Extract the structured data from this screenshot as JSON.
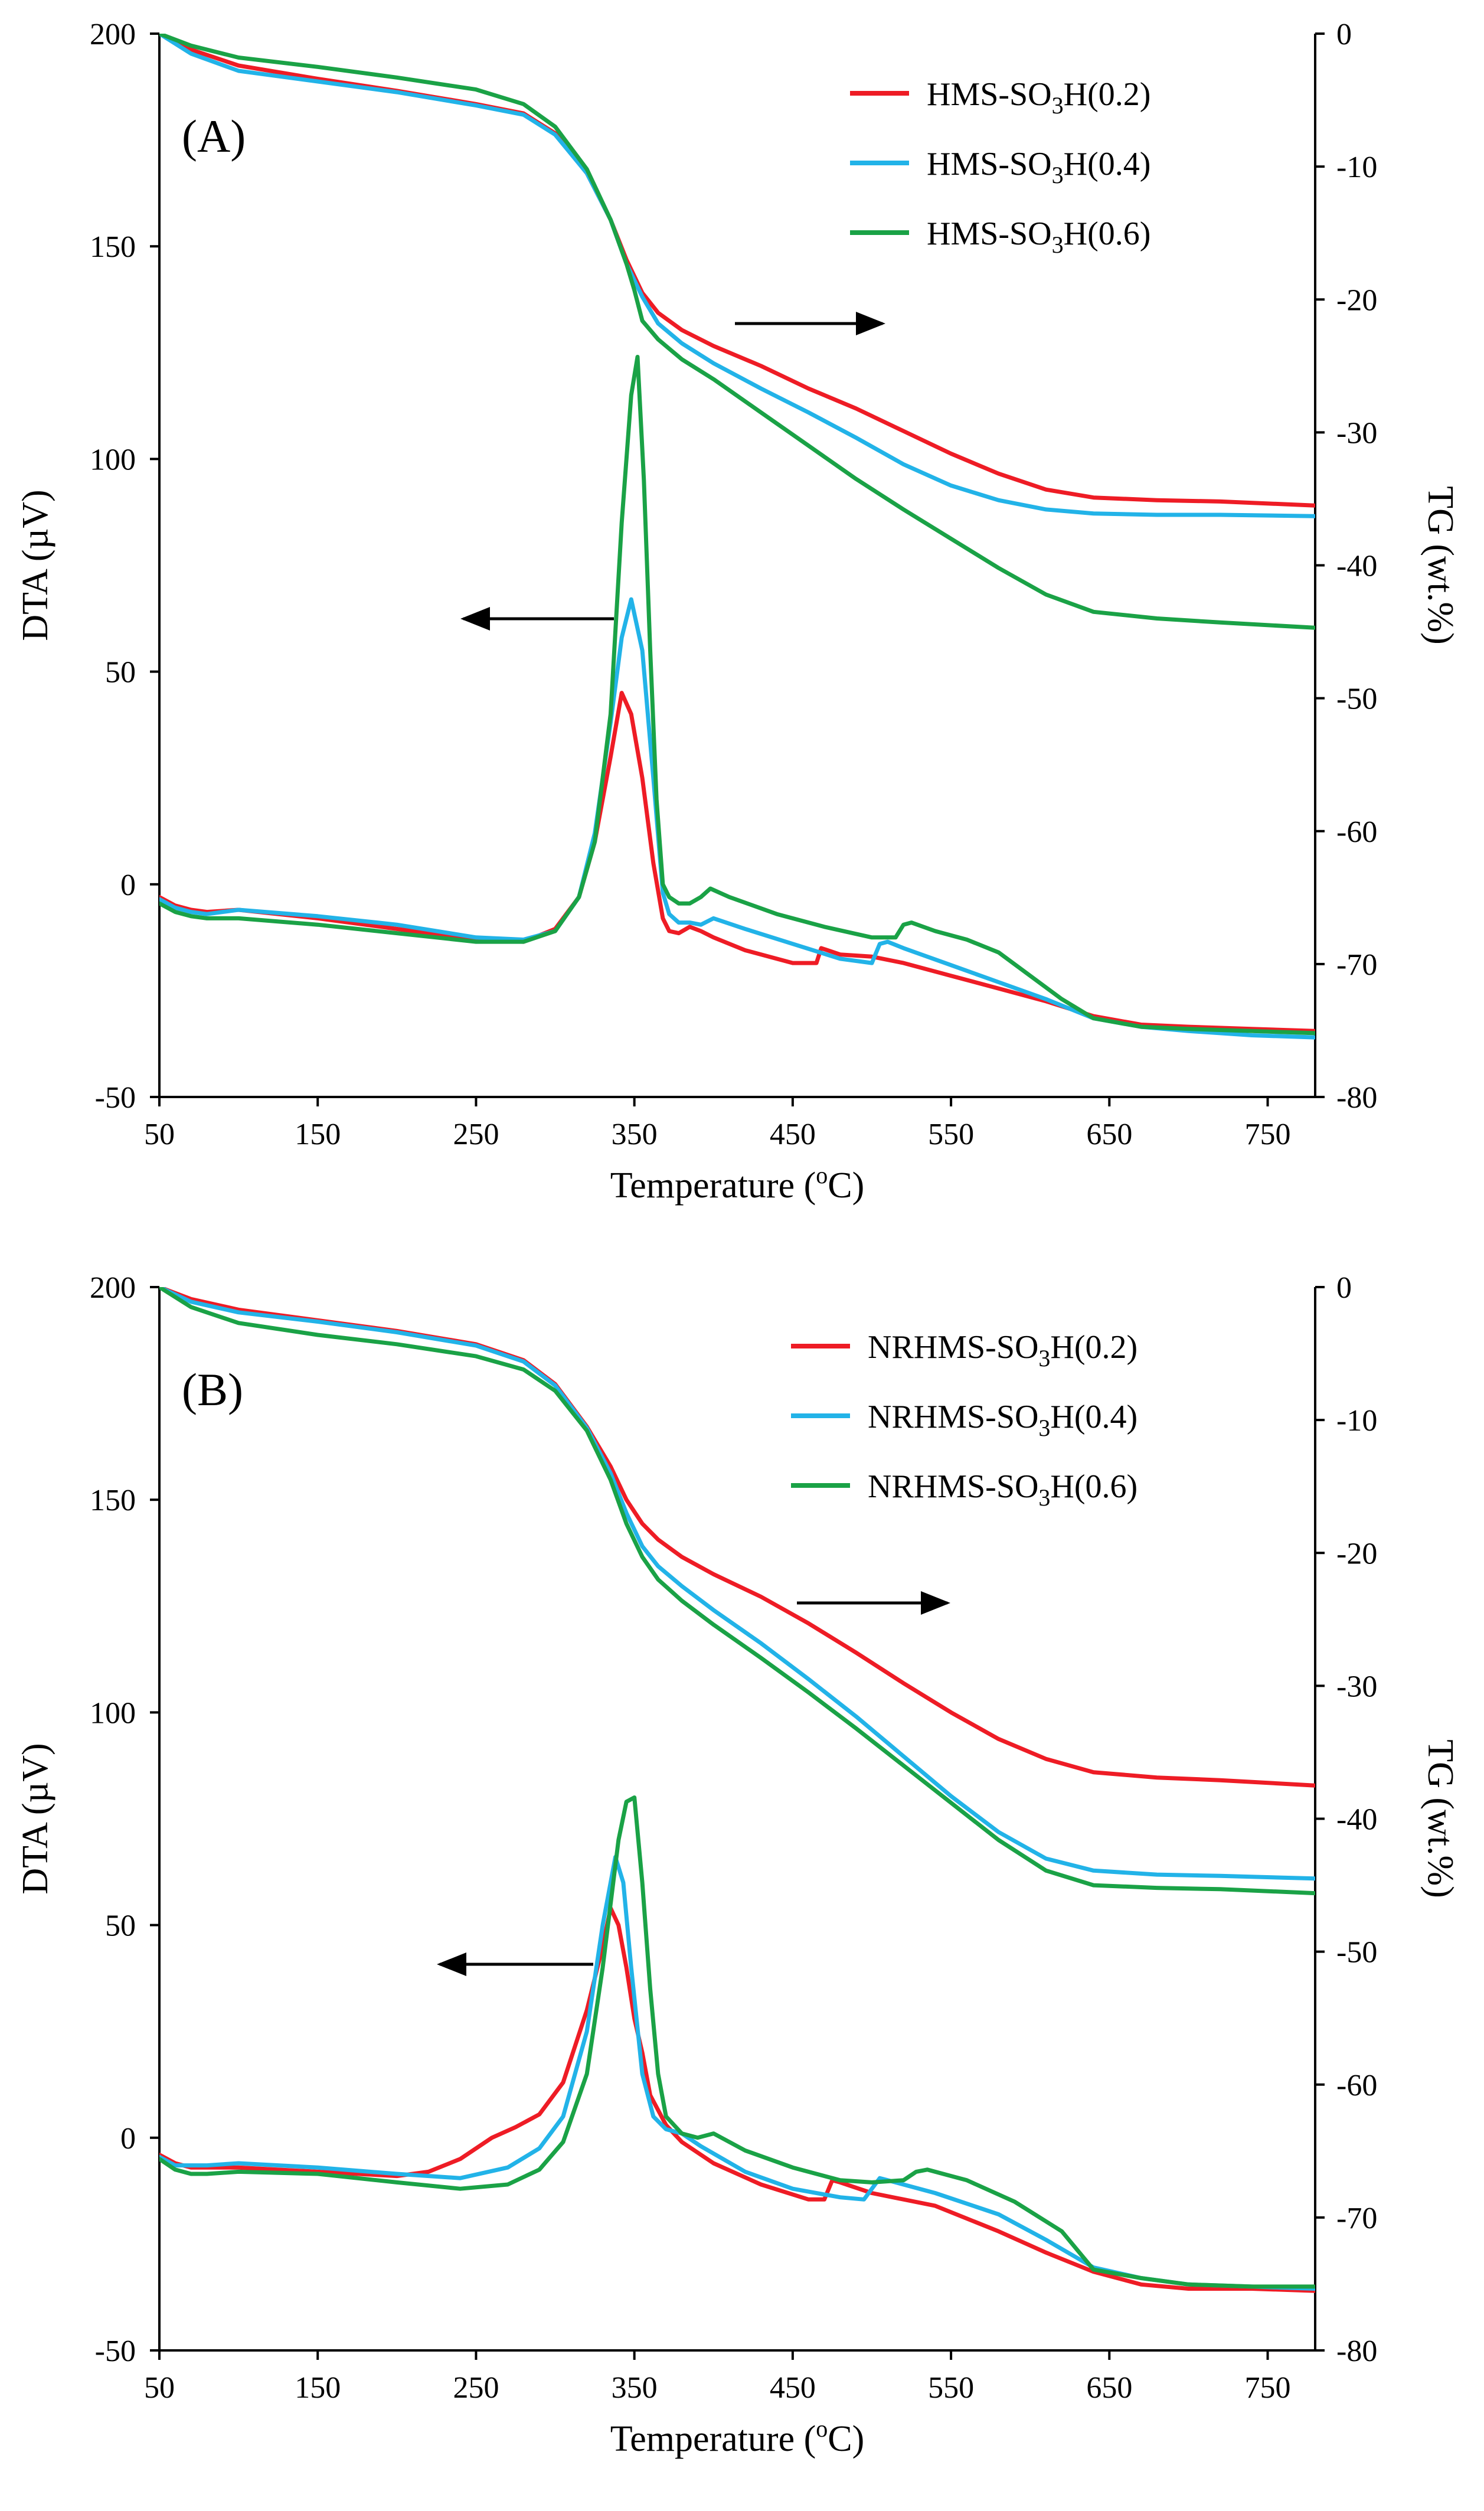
{
  "chart_data": [
    {
      "type": "line",
      "panel_label": "(A)",
      "xlabel": "Temperature (oC)",
      "xlabel_base": "Temperature (",
      "xlabel_sup": "o",
      "xlabel_end": "C)",
      "ylabel_left": "DTA (µV)",
      "ylabel_right": "TG (wt.%)",
      "xlim": [
        50,
        780
      ],
      "ylim_left": [
        -50,
        200
      ],
      "ylim_right": [
        -80,
        0
      ],
      "xticks": [
        50,
        150,
        250,
        350,
        450,
        550,
        650,
        750
      ],
      "yticks_left": [
        -50,
        0,
        50,
        100,
        150,
        200
      ],
      "yticks_right": [
        -80,
        -70,
        -60,
        -50,
        -40,
        -30,
        -20,
        -10,
        0
      ],
      "legend_position": "top-right",
      "arrows": [
        {
          "direction": "right",
          "axis": "TG",
          "note": "arrow points to TG axis"
        },
        {
          "direction": "left",
          "axis": "DTA",
          "note": "arrow points to DTA axis"
        }
      ],
      "series": [
        {
          "name": "HMS-SO3H(0.2)",
          "name_pre": "HMS-SO",
          "name_sub": "3",
          "name_post": "H(0.2)",
          "color": "#ee1c25",
          "tg_x": [
            50,
            70,
            100,
            150,
            200,
            250,
            280,
            300,
            320,
            335,
            345,
            355,
            365,
            380,
            400,
            430,
            460,
            490,
            520,
            550,
            580,
            610,
            640,
            680,
            720,
            780
          ],
          "tg_y": [
            0,
            -1.2,
            -2.4,
            -3.4,
            -4.3,
            -5.3,
            -6.0,
            -7.5,
            -10.5,
            -14,
            -17,
            -19.5,
            -21,
            -22.3,
            -23.5,
            -25,
            -26.7,
            -28.2,
            -29.9,
            -31.6,
            -33.1,
            -34.3,
            -34.9,
            -35.1,
            -35.2,
            -35.5
          ],
          "dta_x": [
            50,
            60,
            70,
            80,
            100,
            150,
            200,
            250,
            280,
            300,
            315,
            325,
            335,
            342,
            348,
            355,
            362,
            368,
            372,
            378,
            385,
            392,
            400,
            420,
            450,
            465,
            468,
            472,
            480,
            500,
            520,
            550,
            580,
            610,
            640,
            670,
            700,
            740,
            780
          ],
          "dta_y": [
            -3,
            -5,
            -6,
            -6.5,
            -6,
            -8,
            -10.5,
            -13,
            -13.5,
            -10.5,
            -3,
            10,
            30,
            45,
            40,
            25,
            5,
            -8,
            -11,
            -11.5,
            -10,
            -11,
            -12.5,
            -15.5,
            -18.5,
            -18.5,
            -15,
            -15.5,
            -16.5,
            -17,
            -18.5,
            -21.5,
            -24.5,
            -27.5,
            -31,
            -33,
            -33.5,
            -34,
            -34.5
          ]
        },
        {
          "name": "HMS-SO3H(0.4)",
          "name_pre": "HMS-SO",
          "name_sub": "3",
          "name_post": "H(0.4)",
          "color": "#22b3e8",
          "tg_x": [
            50,
            70,
            100,
            150,
            200,
            250,
            280,
            300,
            320,
            335,
            345,
            355,
            365,
            380,
            400,
            430,
            460,
            490,
            520,
            550,
            580,
            610,
            640,
            680,
            720,
            780
          ],
          "tg_y": [
            0,
            -1.5,
            -2.8,
            -3.6,
            -4.4,
            -5.4,
            -6.1,
            -7.6,
            -10.5,
            -14,
            -17.3,
            -19.8,
            -21.8,
            -23.3,
            -24.8,
            -26.7,
            -28.5,
            -30.4,
            -32.4,
            -34.0,
            -35.1,
            -35.8,
            -36.1,
            -36.2,
            -36.2,
            -36.3
          ],
          "dta_x": [
            50,
            60,
            70,
            80,
            100,
            150,
            200,
            250,
            280,
            300,
            315,
            325,
            335,
            342,
            348,
            355,
            362,
            368,
            372,
            378,
            385,
            392,
            400,
            420,
            450,
            480,
            500,
            505,
            510,
            520,
            550,
            580,
            610,
            640,
            670,
            700,
            740,
            780
          ],
          "dta_y": [
            -3.5,
            -5.5,
            -6.5,
            -7,
            -6,
            -7.5,
            -9.5,
            -12.5,
            -13,
            -11,
            -3,
            12,
            38,
            58,
            67,
            55,
            25,
            -2,
            -7,
            -9,
            -9,
            -9.5,
            -8,
            -10.5,
            -14,
            -17.5,
            -18.5,
            -14,
            -13.5,
            -15,
            -19,
            -23,
            -27,
            -31.5,
            -33.5,
            -34.5,
            -35.5,
            -36
          ]
        },
        {
          "name": "HMS-SO3H(0.6)",
          "name_pre": "HMS-SO",
          "name_sub": "3",
          "name_post": "H(0.6)",
          "color": "#1aa246",
          "tg_x": [
            50,
            70,
            100,
            150,
            200,
            250,
            280,
            300,
            320,
            335,
            345,
            350,
            355,
            365,
            380,
            400,
            430,
            460,
            490,
            520,
            550,
            580,
            610,
            640,
            680,
            720,
            780
          ],
          "tg_y": [
            0,
            -0.9,
            -1.8,
            -2.5,
            -3.3,
            -4.2,
            -5.3,
            -7.0,
            -10.2,
            -14,
            -17.3,
            -19.3,
            -21.6,
            -23.0,
            -24.5,
            -26.0,
            -28.5,
            -31.0,
            -33.5,
            -35.8,
            -38.0,
            -40.2,
            -42.2,
            -43.5,
            -44.0,
            -44.3,
            -44.7
          ],
          "dta_x": [
            50,
            60,
            70,
            80,
            100,
            150,
            200,
            250,
            280,
            300,
            315,
            325,
            335,
            342,
            348,
            352,
            356,
            360,
            364,
            368,
            372,
            378,
            385,
            392,
            398,
            410,
            440,
            470,
            500,
            515,
            520,
            525,
            540,
            560,
            580,
            600,
            620,
            640,
            670,
            700,
            740,
            780
          ],
          "dta_y": [
            -4.5,
            -6.5,
            -7.5,
            -8,
            -8,
            -9.5,
            -11.5,
            -13.5,
            -13.5,
            -11,
            -3,
            10,
            40,
            85,
            115,
            124,
            95,
            55,
            20,
            0,
            -3,
            -4.5,
            -4.5,
            -3,
            -1,
            -3,
            -7,
            -10,
            -12.5,
            -12.5,
            -9.5,
            -9,
            -11,
            -13,
            -16,
            -21.5,
            -27,
            -31.5,
            -33.5,
            -34,
            -34.5,
            -35
          ]
        }
      ]
    },
    {
      "type": "line",
      "panel_label": "(B)",
      "xlabel": "Temperature (oC)",
      "xlabel_base": "Temperature (",
      "xlabel_sup": "o",
      "xlabel_end": "C)",
      "ylabel_left": "DTA (µV)",
      "ylabel_right": "TG (wt.%)",
      "xlim": [
        50,
        780
      ],
      "ylim_left": [
        -50,
        200
      ],
      "ylim_right": [
        -80,
        0
      ],
      "xticks": [
        50,
        150,
        250,
        350,
        450,
        550,
        650,
        750
      ],
      "yticks_left": [
        -50,
        0,
        50,
        100,
        150,
        200
      ],
      "yticks_right": [
        -80,
        -70,
        -60,
        -50,
        -40,
        -30,
        -20,
        -10,
        0
      ],
      "legend_position": "top-right",
      "arrows": [
        {
          "direction": "right",
          "axis": "TG",
          "note": "arrow points to TG axis"
        },
        {
          "direction": "left",
          "axis": "DTA",
          "note": "arrow points to DTA axis"
        }
      ],
      "series": [
        {
          "name": "NRHMS-SO3H(0.2)",
          "name_pre": "NRHMS-SO",
          "name_sub": "3",
          "name_post": "H(0.2)",
          "color": "#ee1c25",
          "tg_x": [
            50,
            70,
            100,
            150,
            200,
            250,
            280,
            300,
            320,
            335,
            345,
            355,
            365,
            380,
            400,
            430,
            460,
            490,
            520,
            550,
            580,
            610,
            640,
            680,
            720,
            780
          ],
          "tg_y": [
            0,
            -0.9,
            -1.7,
            -2.5,
            -3.3,
            -4.3,
            -5.5,
            -7.3,
            -10.5,
            -13.5,
            -16,
            -17.8,
            -19,
            -20.3,
            -21.6,
            -23.3,
            -25.3,
            -27.5,
            -29.8,
            -32.0,
            -34.0,
            -35.5,
            -36.5,
            -36.9,
            -37.1,
            -37.5
          ],
          "dta_x": [
            50,
            60,
            70,
            80,
            100,
            150,
            200,
            220,
            240,
            260,
            275,
            290,
            305,
            320,
            330,
            335,
            340,
            345,
            350,
            355,
            360,
            370,
            380,
            400,
            430,
            460,
            470,
            475,
            480,
            500,
            540,
            580,
            610,
            640,
            670,
            700,
            740,
            780
          ],
          "dta_y": [
            -4,
            -6,
            -7,
            -7,
            -7,
            -8,
            -9,
            -8,
            -5,
            0,
            2.5,
            5.5,
            13,
            30,
            45,
            54,
            50,
            40,
            28,
            20,
            10,
            3,
            -1,
            -6,
            -11,
            -14.5,
            -14.5,
            -10,
            -10.5,
            -13,
            -16,
            -22,
            -27,
            -31.5,
            -34.5,
            -35.5,
            -35.5,
            -36
          ]
        },
        {
          "name": "NRHMS-SO3H(0.4)",
          "name_pre": "NRHMS-SO",
          "name_sub": "3",
          "name_post": "H(0.4)",
          "color": "#22b3e8",
          "tg_x": [
            50,
            70,
            100,
            150,
            200,
            250,
            280,
            300,
            320,
            335,
            345,
            355,
            365,
            380,
            400,
            430,
            460,
            490,
            520,
            550,
            580,
            610,
            640,
            680,
            720,
            780
          ],
          "tg_y": [
            0,
            -1.1,
            -1.9,
            -2.6,
            -3.4,
            -4.4,
            -5.6,
            -7.4,
            -10.6,
            -14,
            -17,
            -19.5,
            -21,
            -22.5,
            -24.3,
            -26.8,
            -29.5,
            -32.3,
            -35.3,
            -38.3,
            -41.0,
            -43.0,
            -43.9,
            -44.2,
            -44.3,
            -44.5
          ],
          "dta_x": [
            50,
            60,
            70,
            80,
            100,
            150,
            200,
            240,
            270,
            290,
            305,
            320,
            330,
            338,
            343,
            348,
            355,
            362,
            370,
            380,
            392,
            420,
            450,
            480,
            495,
            500,
            505,
            510,
            540,
            580,
            610,
            640,
            670,
            700,
            740,
            780
          ],
          "dta_y": [
            -4.5,
            -6.5,
            -6.5,
            -6.5,
            -6,
            -7,
            -8.5,
            -9.5,
            -7,
            -2.5,
            5,
            25,
            50,
            66,
            60,
            40,
            15,
            5,
            2,
            1,
            -2,
            -8,
            -12,
            -14,
            -14.5,
            -12,
            -9.5,
            -10,
            -13,
            -18,
            -24,
            -30.5,
            -33,
            -34.5,
            -35,
            -35.5
          ]
        },
        {
          "name": "NRHMS-SO3H(0.6)",
          "name_pre": "NRHMS-SO",
          "name_sub": "3",
          "name_post": "H(0.6)",
          "color": "#1aa246",
          "tg_x": [
            50,
            70,
            100,
            150,
            200,
            250,
            280,
            300,
            320,
            335,
            345,
            355,
            365,
            380,
            400,
            430,
            460,
            490,
            520,
            550,
            580,
            610,
            640,
            680,
            720,
            780
          ],
          "tg_y": [
            0,
            -1.5,
            -2.7,
            -3.6,
            -4.3,
            -5.2,
            -6.2,
            -7.8,
            -10.8,
            -14.5,
            -17.8,
            -20.3,
            -22,
            -23.6,
            -25.4,
            -27.9,
            -30.5,
            -33.2,
            -36.0,
            -38.8,
            -41.6,
            -43.9,
            -45.0,
            -45.2,
            -45.3,
            -45.6
          ],
          "dta_x": [
            50,
            60,
            70,
            80,
            100,
            150,
            200,
            240,
            270,
            290,
            305,
            320,
            330,
            340,
            345,
            350,
            355,
            360,
            365,
            370,
            380,
            390,
            400,
            420,
            450,
            480,
            500,
            520,
            528,
            535,
            560,
            590,
            620,
            640,
            670,
            700,
            740,
            780
          ],
          "dta_y": [
            -5,
            -7.5,
            -8.5,
            -8.5,
            -8,
            -8.5,
            -10.5,
            -12,
            -11,
            -7.5,
            -1,
            15,
            40,
            70,
            79,
            80,
            60,
            35,
            15,
            5,
            1,
            0,
            1,
            -3,
            -7,
            -10,
            -10.5,
            -10,
            -8,
            -7.5,
            -10,
            -15,
            -22,
            -31,
            -33,
            -34.5,
            -35,
            -35
          ]
        }
      ]
    }
  ]
}
